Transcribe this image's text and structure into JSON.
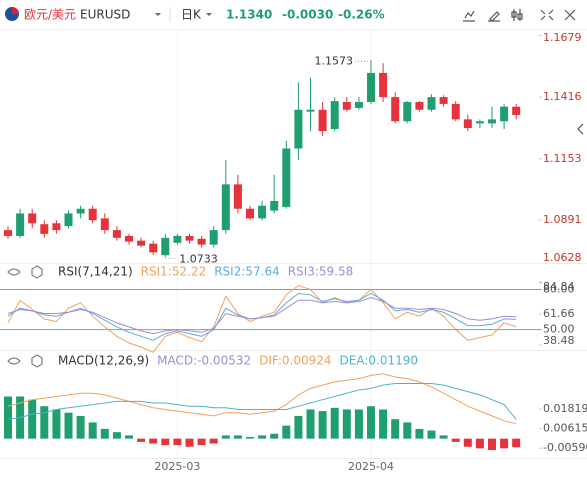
{
  "header": {
    "name": "欧元/美元",
    "symbol": "EURUSD",
    "period": "日K",
    "price": "1.1340",
    "change": "-0.0030",
    "change_pct": "-0.26%"
  },
  "chart_data": [
    {
      "type": "candlestick",
      "up_color": "#1f9e6e",
      "down_color": "#e5323b",
      "open": [
        1.0849,
        1.0824,
        1.092,
        1.0874,
        1.0878,
        1.0866,
        1.092,
        1.094,
        1.0899,
        1.0849,
        1.0824,
        1.0804,
        1.0791,
        1.0742,
        1.0795,
        1.0824,
        1.0812,
        1.0787,
        1.0849,
        1.1044,
        1.094,
        1.0899,
        1.0932,
        1.0948,
        1.1197,
        1.1354,
        1.1362,
        1.128,
        1.1395,
        1.137,
        1.1395,
        1.1519,
        1.1416,
        1.1313,
        1.1395,
        1.1362,
        1.1416,
        1.1387,
        1.1321,
        1.1304,
        1.1304,
        1.1313,
        1.1375
      ],
      "high": [
        1.0866,
        1.094,
        1.094,
        1.0891,
        1.0891,
        1.0932,
        1.0953,
        1.0953,
        1.092,
        1.0866,
        1.0833,
        1.0816,
        1.0804,
        1.0833,
        1.0833,
        1.0833,
        1.0824,
        1.0866,
        1.1147,
        1.1085,
        1.0953,
        1.0973,
        1.1085,
        1.123,
        1.1478,
        1.1499,
        1.1395,
        1.1416,
        1.1416,
        1.1416,
        1.1573,
        1.1561,
        1.1437,
        1.1399,
        1.1399,
        1.1428,
        1.1424,
        1.1399,
        1.1341,
        1.1321,
        1.1375,
        1.1387,
        1.1387
      ],
      "low": [
        1.0812,
        1.0816,
        1.0857,
        1.0816,
        1.0833,
        1.0857,
        1.0899,
        1.0878,
        1.0833,
        1.0804,
        1.0787,
        1.0775,
        1.0742,
        1.0733,
        1.0787,
        1.0791,
        1.0775,
        1.0775,
        1.0833,
        1.092,
        1.0891,
        1.0891,
        1.092,
        1.094,
        1.1147,
        1.1271,
        1.125,
        1.1271,
        1.1354,
        1.1362,
        1.1387,
        1.1395,
        1.1304,
        1.1304,
        1.1354,
        1.1354,
        1.1375,
        1.1313,
        1.1271,
        1.1284,
        1.1284,
        1.128,
        1.1321
      ],
      "close": [
        1.0824,
        1.092,
        1.0878,
        1.0833,
        1.0849,
        1.092,
        1.094,
        1.0891,
        1.0849,
        1.0816,
        1.08,
        1.0783,
        1.0754,
        1.0816,
        1.0824,
        1.0804,
        1.0787,
        1.0849,
        1.1044,
        1.094,
        1.0899,
        1.0953,
        1.0973,
        1.1197,
        1.1362,
        1.1362,
        1.1271,
        1.1399,
        1.1362,
        1.1395,
        1.1519,
        1.1416,
        1.1313,
        1.1395,
        1.1362,
        1.1416,
        1.1387,
        1.1321,
        1.1284,
        1.1313,
        1.1321,
        1.1375,
        1.134
      ],
      "ylim": [
        1.0713,
        1.1685
      ],
      "yticks": [
        1.1679,
        1.1416,
        1.1153,
        1.0891,
        1.0628
      ],
      "tick_color": "#c0392b",
      "annotations": [
        1.1573,
        1.0733
      ]
    },
    {
      "type": "line",
      "title": "RSI(7,14,21)",
      "ylim": [
        38.48,
        84.84
      ],
      "yticks": [
        84.84,
        {
          "value": 80,
          "label": "80.00"
        },
        61.66,
        {
          "value": 50,
          "label": "50.00"
        },
        38.48
      ],
      "levels": [
        80,
        50
      ],
      "level_color": "#4fb3c8",
      "series": [
        {
          "name": "RSI1:52.22",
          "color": "#f2a25c",
          "values": [
            55,
            72,
            65,
            58,
            56,
            66,
            70,
            60,
            52,
            45,
            40,
            37,
            33,
            45,
            48,
            44,
            41,
            52,
            75,
            62,
            56,
            60,
            63,
            76,
            83,
            80,
            70,
            74,
            70,
            72,
            80,
            70,
            58,
            63,
            60,
            66,
            60,
            50,
            42,
            44,
            46,
            55,
            52.22
          ]
        },
        {
          "name": "RSI2:57.64",
          "color": "#5aaee0",
          "values": [
            60,
            66,
            64,
            61,
            60,
            63,
            66,
            62,
            57,
            52,
            48,
            45,
            42,
            47,
            49,
            47,
            45,
            50,
            66,
            61,
            58,
            59,
            61,
            70,
            77,
            76,
            71,
            73,
            71,
            72,
            77,
            72,
            64,
            65,
            63,
            65,
            63,
            58,
            53,
            53,
            54,
            58,
            57.64
          ]
        },
        {
          "name": "RSI3:59.58",
          "color": "#a48ad8",
          "values": [
            62,
            65,
            64,
            62,
            62,
            63,
            65,
            63,
            59,
            55,
            52,
            49,
            47,
            49,
            50,
            49,
            48,
            51,
            62,
            60,
            58,
            59,
            60,
            66,
            72,
            72,
            70,
            71,
            70,
            71,
            74,
            71,
            66,
            66,
            65,
            66,
            65,
            62,
            58,
            57,
            58,
            60,
            59.58
          ]
        }
      ]
    },
    {
      "type": "macd",
      "title": "MACD(12,26,9)",
      "ylim": [
        -0.0107,
        0.0411
      ],
      "yticks": [
        0.01819,
        0.00615,
        {
          "value": -0.0059,
          "label": "-0.00590"
        }
      ],
      "positive_color": "#1f9e6e",
      "negative_color": "#e5323b",
      "categories": [
        null,
        null,
        null,
        null,
        null,
        null,
        null,
        null,
        null,
        null,
        null,
        null,
        null,
        null,
        "2025-03",
        null,
        null,
        null,
        null,
        null,
        null,
        null,
        null,
        null,
        null,
        null,
        null,
        null,
        null,
        null,
        "2025-04",
        null,
        null,
        null,
        null,
        null,
        null,
        null,
        null,
        null,
        null,
        null,
        null
      ],
      "series": [
        {
          "name": "MACD:-0.00532",
          "color": "#a48ad8",
          "style": "bar",
          "values": [
            0.026,
            0.026,
            0.024,
            0.02,
            0.018,
            0.016,
            0.014,
            0.01,
            0.006,
            0.004,
            0.002,
            -0.002,
            -0.003,
            -0.004,
            -0.004,
            -0.005,
            -0.004,
            -0.003,
            0.002,
            0.002,
            0.001,
            0.002,
            0.003,
            0.008,
            0.014,
            0.018,
            0.017,
            0.019,
            0.018,
            0.018,
            0.02,
            0.018,
            0.012,
            0.01,
            0.006,
            0.005,
            0.002,
            -0.002,
            -0.005,
            -0.006,
            -0.007,
            -0.006,
            -0.00532
          ]
        },
        {
          "name": "DIF:0.00924",
          "color": "#f2a25c",
          "style": "line",
          "values": [
            0.02,
            0.022,
            0.024,
            0.025,
            0.026,
            0.027,
            0.028,
            0.028,
            0.027,
            0.025,
            0.023,
            0.021,
            0.019,
            0.018,
            0.017,
            0.016,
            0.015,
            0.014,
            0.016,
            0.016,
            0.015,
            0.016,
            0.017,
            0.021,
            0.027,
            0.031,
            0.033,
            0.035,
            0.036,
            0.037,
            0.039,
            0.04,
            0.038,
            0.037,
            0.035,
            0.032,
            0.028,
            0.024,
            0.02,
            0.017,
            0.014,
            0.011,
            0.00924
          ]
        },
        {
          "name": "DEA:0.01190",
          "color": "#4fb3c8",
          "style": "line",
          "values": [
            0.012,
            0.013,
            0.015,
            0.016,
            0.018,
            0.019,
            0.02,
            0.021,
            0.022,
            0.023,
            0.023,
            0.023,
            0.022,
            0.022,
            0.021,
            0.02,
            0.02,
            0.019,
            0.019,
            0.018,
            0.018,
            0.018,
            0.018,
            0.018,
            0.02,
            0.022,
            0.024,
            0.026,
            0.028,
            0.03,
            0.031,
            0.033,
            0.034,
            0.034,
            0.034,
            0.034,
            0.033,
            0.031,
            0.029,
            0.027,
            0.024,
            0.021,
            0.0119
          ]
        }
      ]
    }
  ]
}
